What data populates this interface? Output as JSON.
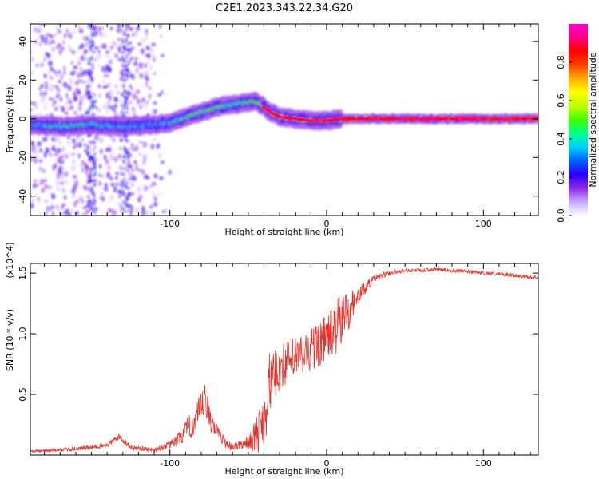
{
  "figure_title": "C2E1.2023.343.22.34.G20",
  "chart_data": [
    {
      "type": "heatmap",
      "xlabel": "Height of straight line (km)",
      "ylabel": "Frequency (Hz)",
      "xlim": [
        -189,
        135
      ],
      "ylim": [
        -50,
        49
      ],
      "x_ticks": [
        -100,
        0,
        100
      ],
      "y_ticks": [
        -40,
        -20,
        0,
        20,
        40
      ],
      "colorbar": {
        "label": "Normalized spectral amplitude",
        "range": [
          0,
          1
        ],
        "ticks": [
          0.0,
          0.2,
          0.4,
          0.6,
          0.8
        ],
        "colors": [
          "#ffffff",
          "#c8a8ff",
          "#8a2be2",
          "#2a00ff",
          "#0060ff",
          "#00d0ff",
          "#00ff90",
          "#40ff00",
          "#c0ff00",
          "#ffff00",
          "#ffb000",
          "#ff4000",
          "#ff0000",
          "#ff0080",
          "#ff00d0"
        ]
      },
      "ridge": {
        "x": [
          -189,
          -170,
          -150,
          -130,
          -110,
          -100,
          -85,
          -70,
          -55,
          -45,
          -40,
          -35,
          -30,
          -20,
          -10,
          0,
          10,
          20,
          40,
          60,
          80,
          100,
          120,
          135
        ],
        "y": [
          -3,
          -4,
          -3,
          -4,
          -3,
          -2,
          2,
          6,
          8,
          9,
          6,
          3,
          1,
          0,
          -1,
          -1,
          0,
          0,
          0,
          0,
          0,
          0,
          0,
          0
        ],
        "amplitude": [
          0.35,
          0.4,
          0.4,
          0.35,
          0.35,
          0.4,
          0.5,
          0.5,
          0.45,
          0.5,
          0.75,
          0.8,
          0.8,
          0.85,
          0.85,
          0.9,
          0.9,
          0.9,
          0.9,
          0.92,
          0.92,
          0.95,
          0.95,
          0.95
        ]
      }
    },
    {
      "type": "line",
      "xlabel": "Height of straight line (km)",
      "ylabel": "SNR (10 * v/v)",
      "y_multiplier": "(x10^4)",
      "xlim": [
        -189,
        135
      ],
      "ylim": [
        0,
        1.58
      ],
      "x_ticks": [
        -100,
        0,
        100
      ],
      "y_ticks": [
        0.5,
        1.0,
        1.5
      ],
      "series": [
        {
          "color": "#e8302a",
          "x": [
            -189,
            -170,
            -150,
            -140,
            -132,
            -125,
            -110,
            -100,
            -95,
            -85,
            -80,
            -78,
            -75,
            -70,
            -65,
            -60,
            -55,
            -50,
            -45,
            -40,
            -38,
            -35,
            -30,
            -25,
            -20,
            -15,
            -10,
            -5,
            0,
            5,
            10,
            15,
            20,
            25,
            30,
            40,
            50,
            60,
            70,
            80,
            90,
            100,
            110,
            120,
            135
          ],
          "y": [
            0.03,
            0.04,
            0.06,
            0.08,
            0.15,
            0.06,
            0.04,
            0.08,
            0.12,
            0.25,
            0.35,
            0.45,
            0.3,
            0.2,
            0.1,
            0.06,
            0.08,
            0.1,
            0.14,
            0.28,
            0.5,
            0.6,
            0.7,
            0.75,
            0.78,
            0.8,
            0.85,
            0.9,
            0.95,
            1.0,
            1.1,
            1.2,
            1.3,
            1.38,
            1.45,
            1.5,
            1.52,
            1.52,
            1.53,
            1.52,
            1.51,
            1.5,
            1.49,
            1.48,
            1.46
          ],
          "noise": [
            0.01,
            0.015,
            0.02,
            0.02,
            0.03,
            0.02,
            0.02,
            0.03,
            0.06,
            0.12,
            0.15,
            0.15,
            0.12,
            0.06,
            0.04,
            0.04,
            0.04,
            0.05,
            0.15,
            0.25,
            0.35,
            0.2,
            0.2,
            0.18,
            0.18,
            0.18,
            0.2,
            0.2,
            0.2,
            0.22,
            0.25,
            0.15,
            0.08,
            0.05,
            0.03,
            0.02,
            0.015,
            0.015,
            0.015,
            0.015,
            0.015,
            0.015,
            0.015,
            0.015,
            0.015
          ]
        }
      ]
    }
  ]
}
